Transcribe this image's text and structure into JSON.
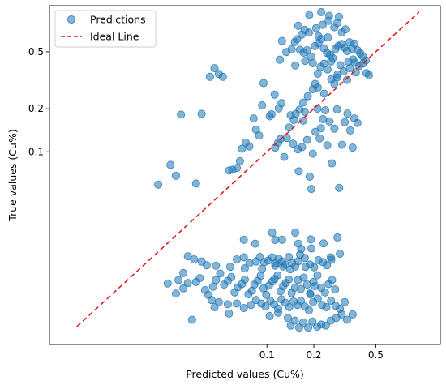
{
  "chart_data": {
    "type": "scatter",
    "xlabel": "Predicted values (Cu%)",
    "ylabel": "True values (Cu%)",
    "x_scale": "log",
    "y_scale": "log",
    "xlim": [
      0.004,
      1.3
    ],
    "ylim": [
      0.0045,
      1.05
    ],
    "x_ticks": [
      {
        "value": 0.1,
        "label": "0.1"
      },
      {
        "value": 0.2,
        "label": "0.2"
      },
      {
        "value": 0.5,
        "label": "0.5"
      }
    ],
    "y_ticks": [
      {
        "value": 0.1,
        "label": "0.1"
      },
      {
        "value": 0.2,
        "label": "0.2"
      },
      {
        "value": 0.5,
        "label": "0.5"
      }
    ],
    "grid": false,
    "legend_position": "top-left",
    "colors": {
      "points": "#1f77b4",
      "ideal_line": "#e41a1c"
    },
    "series": [
      {
        "name": "Predictions",
        "kind": "scatter",
        "points": [
          [
            0.02,
            0.059
          ],
          [
            0.024,
            0.081
          ],
          [
            0.026,
            0.068
          ],
          [
            0.035,
            0.06
          ],
          [
            0.028,
            0.182
          ],
          [
            0.038,
            0.184
          ],
          [
            0.043,
            0.334
          ],
          [
            0.046,
            0.384
          ],
          [
            0.049,
            0.35
          ],
          [
            0.052,
            0.334
          ],
          [
            0.057,
            0.074
          ],
          [
            0.06,
            0.075
          ],
          [
            0.064,
            0.077
          ],
          [
            0.067,
            0.086
          ],
          [
            0.069,
            0.105
          ],
          [
            0.073,
            0.116
          ],
          [
            0.077,
            0.109
          ],
          [
            0.082,
            0.171
          ],
          [
            0.085,
            0.143
          ],
          [
            0.089,
            0.13
          ],
          [
            0.093,
            0.211
          ],
          [
            0.095,
            0.302
          ],
          [
            0.104,
            0.177
          ],
          [
            0.107,
            0.183
          ],
          [
            0.113,
            0.107
          ],
          [
            0.118,
            0.116
          ],
          [
            0.122,
            0.123
          ],
          [
            0.112,
            0.251
          ],
          [
            0.119,
            0.201
          ],
          [
            0.124,
            0.219
          ],
          [
            0.129,
            0.092
          ],
          [
            0.134,
            0.125
          ],
          [
            0.139,
            0.148
          ],
          [
            0.142,
            0.18
          ],
          [
            0.147,
            0.114
          ],
          [
            0.149,
            0.167
          ],
          [
            0.153,
            0.184
          ],
          [
            0.158,
            0.104
          ],
          [
            0.162,
            0.197
          ],
          [
            0.168,
            0.108
          ],
          [
            0.16,
            0.073
          ],
          [
            0.171,
            0.165
          ],
          [
            0.175,
            0.19
          ],
          [
            0.181,
            0.121
          ],
          [
            0.188,
            0.067
          ],
          [
            0.193,
            0.055
          ],
          [
            0.197,
            0.097
          ],
          [
            0.205,
            0.138
          ],
          [
            0.211,
            0.2
          ],
          [
            0.218,
            0.124
          ],
          [
            0.222,
            0.146
          ],
          [
            0.229,
            0.169
          ],
          [
            0.237,
            0.195
          ],
          [
            0.244,
            0.111
          ],
          [
            0.252,
            0.163
          ],
          [
            0.261,
            0.083
          ],
          [
            0.271,
            0.145
          ],
          [
            0.282,
            0.198
          ],
          [
            0.291,
            0.056
          ],
          [
            0.304,
            0.112
          ],
          [
            0.316,
            0.161
          ],
          [
            0.329,
            0.185
          ],
          [
            0.343,
            0.141
          ],
          [
            0.355,
            0.107
          ],
          [
            0.381,
            0.159
          ],
          [
            0.364,
            0.171
          ],
          [
            0.171,
            0.221
          ],
          [
            0.183,
            0.245
          ],
          [
            0.197,
            0.274
          ],
          [
            0.204,
            0.298
          ],
          [
            0.212,
            0.351
          ],
          [
            0.221,
            0.392
          ],
          [
            0.233,
            0.413
          ],
          [
            0.245,
            0.376
          ],
          [
            0.258,
            0.428
          ],
          [
            0.271,
            0.299
          ],
          [
            0.283,
            0.331
          ],
          [
            0.296,
            0.403
          ],
          [
            0.311,
            0.365
          ],
          [
            0.327,
            0.318
          ],
          [
            0.341,
            0.384
          ],
          [
            0.357,
            0.442
          ],
          [
            0.372,
            0.359
          ],
          [
            0.391,
            0.398
          ],
          [
            0.413,
            0.413
          ],
          [
            0.435,
            0.355
          ],
          [
            0.452,
            0.343
          ],
          [
            0.151,
            0.585
          ],
          [
            0.163,
            0.517
          ],
          [
            0.172,
            0.493
          ],
          [
            0.181,
            0.512
          ],
          [
            0.192,
            0.463
          ],
          [
            0.203,
            0.548
          ],
          [
            0.214,
            0.573
          ],
          [
            0.223,
            0.614
          ],
          [
            0.232,
            0.529
          ],
          [
            0.243,
            0.49
          ],
          [
            0.254,
            0.475
          ],
          [
            0.265,
            0.452
          ],
          [
            0.275,
            0.521
          ],
          [
            0.287,
            0.548
          ],
          [
            0.301,
            0.567
          ],
          [
            0.314,
            0.535
          ],
          [
            0.327,
            0.506
          ],
          [
            0.339,
            0.583
          ],
          [
            0.352,
            0.526
          ],
          [
            0.365,
            0.571
          ],
          [
            0.382,
            0.512
          ],
          [
            0.397,
            0.488
          ],
          [
            0.413,
            0.464
          ],
          [
            0.431,
            0.435
          ],
          [
            0.159,
            0.76
          ],
          [
            0.175,
            0.711
          ],
          [
            0.186,
            0.681
          ],
          [
            0.207,
            0.732
          ],
          [
            0.228,
            0.771
          ],
          [
            0.249,
            0.823
          ],
          [
            0.271,
            0.742
          ],
          [
            0.283,
            0.796
          ],
          [
            0.303,
            0.683
          ],
          [
            0.319,
            0.717
          ],
          [
            0.187,
            0.904
          ],
          [
            0.223,
            0.947
          ],
          [
            0.251,
            0.892
          ],
          [
            0.29,
            0.878
          ],
          [
            0.214,
            0.644
          ],
          [
            0.246,
            0.63
          ],
          [
            0.167,
            0.659
          ],
          [
            0.156,
            0.612
          ],
          [
            0.125,
            0.595
          ],
          [
            0.121,
            0.44
          ],
          [
            0.152,
            0.401
          ],
          [
            0.176,
            0.432
          ],
          [
            0.197,
            0.416
          ],
          [
            0.133,
            0.498
          ],
          [
            0.144,
            0.52
          ],
          [
            0.212,
            0.281
          ],
          [
            0.233,
            0.255
          ],
          [
            0.259,
            0.321
          ],
          [
            0.284,
            0.347
          ],
          [
            0.333,
            0.427
          ],
          [
            0.367,
            0.42
          ],
          [
            0.031,
            0.0186
          ],
          [
            0.034,
            0.0177
          ],
          [
            0.038,
            0.0171
          ],
          [
            0.041,
            0.0161
          ],
          [
            0.029,
            0.0142
          ],
          [
            0.027,
            0.0127
          ],
          [
            0.023,
            0.012
          ],
          [
            0.029,
            0.0111
          ],
          [
            0.026,
            0.0102
          ],
          [
            0.031,
            0.0121
          ],
          [
            0.035,
            0.0123
          ],
          [
            0.037,
            0.0131
          ],
          [
            0.04,
            0.0108
          ],
          [
            0.042,
            0.01
          ],
          [
            0.045,
            0.0114
          ],
          [
            0.047,
            0.0127
          ],
          [
            0.05,
            0.0141
          ],
          [
            0.053,
            0.0118
          ],
          [
            0.056,
            0.0125
          ],
          [
            0.059,
            0.0133
          ],
          [
            0.062,
            0.0104
          ],
          [
            0.065,
            0.0113
          ],
          [
            0.069,
            0.0119
          ],
          [
            0.072,
            0.0128
          ],
          [
            0.076,
            0.0101
          ],
          [
            0.08,
            0.0107
          ],
          [
            0.083,
            0.0118
          ],
          [
            0.087,
            0.0125
          ],
          [
            0.091,
            0.0136
          ],
          [
            0.095,
            0.0111
          ],
          [
            0.099,
            0.01
          ],
          [
            0.103,
            0.0116
          ],
          [
            0.108,
            0.0124
          ],
          [
            0.112,
            0.0129
          ],
          [
            0.117,
            0.0137
          ],
          [
            0.122,
            0.0106
          ],
          [
            0.127,
            0.0115
          ],
          [
            0.132,
            0.0121
          ],
          [
            0.138,
            0.0128
          ],
          [
            0.144,
            0.0103
          ],
          [
            0.151,
            0.0112
          ],
          [
            0.158,
            0.0127
          ],
          [
            0.165,
            0.011
          ],
          [
            0.172,
            0.0132
          ],
          [
            0.181,
            0.0118
          ],
          [
            0.19,
            0.0101
          ],
          [
            0.199,
            0.0123
          ],
          [
            0.211,
            0.0137
          ],
          [
            0.223,
            0.0112
          ],
          [
            0.236,
            0.0104
          ],
          [
            0.249,
            0.0119
          ],
          [
            0.262,
            0.0127
          ],
          [
            0.274,
            0.0109
          ],
          [
            0.064,
            0.0177
          ],
          [
            0.071,
            0.0183
          ],
          [
            0.077,
            0.0166
          ],
          [
            0.085,
            0.0171
          ],
          [
            0.09,
            0.0184
          ],
          [
            0.096,
            0.0169
          ],
          [
            0.102,
            0.0174
          ],
          [
            0.108,
            0.0183
          ],
          [
            0.113,
            0.0166
          ],
          [
            0.119,
            0.0179
          ],
          [
            0.125,
            0.0171
          ],
          [
            0.131,
            0.0163
          ],
          [
            0.138,
            0.0184
          ],
          [
            0.145,
            0.0167
          ],
          [
            0.152,
            0.0158
          ],
          [
            0.159,
            0.0172
          ],
          [
            0.163,
            0.0191
          ],
          [
            0.175,
            0.0181
          ],
          [
            0.189,
            0.0163
          ],
          [
            0.201,
            0.0156
          ],
          [
            0.214,
            0.0175
          ],
          [
            0.229,
            0.0169
          ],
          [
            0.243,
            0.0161
          ],
          [
            0.259,
            0.0176
          ],
          [
            0.113,
            0.016
          ],
          [
            0.127,
            0.0158
          ],
          [
            0.141,
            0.0151
          ],
          [
            0.072,
            0.0153
          ],
          [
            0.093,
            0.0152
          ],
          [
            0.047,
            0.016
          ],
          [
            0.058,
            0.0157
          ],
          [
            0.044,
            0.0092
          ],
          [
            0.049,
            0.0089
          ],
          [
            0.056,
            0.0086
          ],
          [
            0.064,
            0.0087
          ],
          [
            0.071,
            0.0081
          ],
          [
            0.079,
            0.0085
          ],
          [
            0.085,
            0.0092
          ],
          [
            0.092,
            0.0087
          ],
          [
            0.098,
            0.0083
          ],
          [
            0.105,
            0.0091
          ],
          [
            0.111,
            0.0086
          ],
          [
            0.118,
            0.008
          ],
          [
            0.124,
            0.0093
          ],
          [
            0.131,
            0.0088
          ],
          [
            0.139,
            0.0082
          ],
          [
            0.148,
            0.009
          ],
          [
            0.157,
            0.0085
          ],
          [
            0.165,
            0.0091
          ],
          [
            0.175,
            0.0083
          ],
          [
            0.186,
            0.0078
          ],
          [
            0.198,
            0.0089
          ],
          [
            0.212,
            0.0094
          ],
          [
            0.226,
            0.0085
          ],
          [
            0.241,
            0.0082
          ],
          [
            0.258,
            0.0091
          ],
          [
            0.276,
            0.0084
          ],
          [
            0.294,
            0.008
          ],
          [
            0.316,
            0.0089
          ],
          [
            0.136,
            0.0069
          ],
          [
            0.142,
            0.0061
          ],
          [
            0.151,
            0.0066
          ],
          [
            0.161,
            0.0059
          ],
          [
            0.171,
            0.0064
          ],
          [
            0.184,
            0.0059
          ],
          [
            0.196,
            0.0065
          ],
          [
            0.21,
            0.006
          ],
          [
            0.223,
            0.0062
          ],
          [
            0.239,
            0.0061
          ],
          [
            0.257,
            0.0066
          ],
          [
            0.279,
            0.0069
          ],
          [
            0.302,
            0.0073
          ],
          [
            0.327,
            0.0067
          ],
          [
            0.355,
            0.0073
          ],
          [
            0.033,
            0.0067
          ],
          [
            0.046,
            0.0082
          ],
          [
            0.057,
            0.0074
          ],
          [
            0.104,
            0.0071
          ],
          [
            0.118,
            0.0075
          ],
          [
            0.189,
            0.0102
          ],
          [
            0.203,
            0.0115
          ],
          [
            0.177,
            0.0157
          ],
          [
            0.193,
            0.0211
          ],
          [
            0.231,
            0.0229
          ],
          [
            0.284,
            0.0252
          ],
          [
            0.166,
            0.0209
          ],
          [
            0.159,
            0.0228
          ],
          [
            0.191,
            0.0244
          ],
          [
            0.113,
            0.0242
          ],
          [
            0.257,
            0.0183
          ],
          [
            0.294,
            0.0194
          ],
          [
            0.108,
            0.0272
          ],
          [
            0.152,
            0.0272
          ],
          [
            0.125,
            0.0243
          ],
          [
            0.071,
            0.0243
          ],
          [
            0.084,
            0.0228
          ]
        ]
      },
      {
        "name": "Ideal Line",
        "kind": "line",
        "points": [
          [
            0.006,
            0.006
          ],
          [
            0.95,
            0.95
          ]
        ]
      }
    ]
  }
}
